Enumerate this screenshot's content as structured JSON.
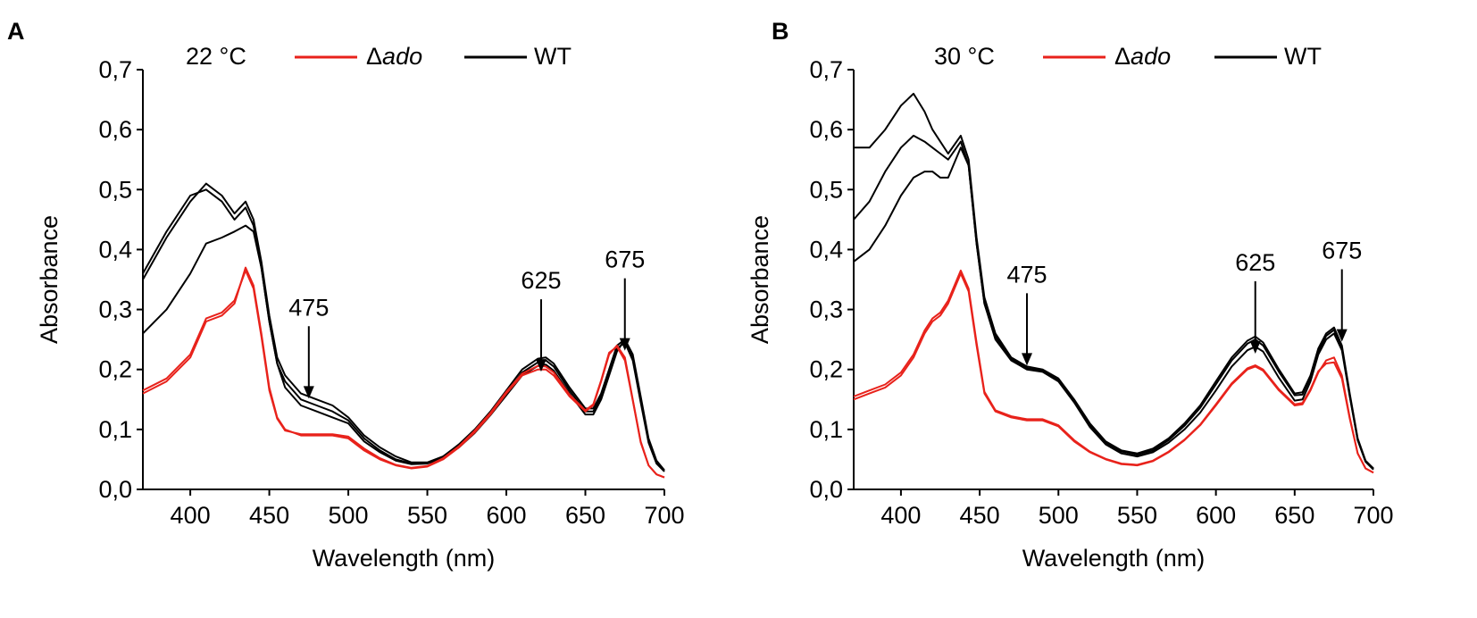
{
  "chart_data": [
    {
      "panel": "A",
      "type": "line",
      "temperature": "22 °C",
      "xlabel": "Wavelength (nm)",
      "ylabel": "Absorbance",
      "xlim": [
        370,
        700
      ],
      "ylim": [
        0,
        0.7
      ],
      "xticks": [
        400,
        450,
        500,
        550,
        600,
        650,
        700
      ],
      "yticks": [
        0,
        0.1,
        0.2,
        0.3,
        0.4,
        0.5,
        0.6,
        0.7
      ],
      "ytick_labels": [
        "0,0",
        "0,1",
        "0,2",
        "0,3",
        "0,4",
        "0,5",
        "0,6",
        "0,7"
      ],
      "legend": [
        {
          "label_prefix": "Δ",
          "label_italic": "ado",
          "color": "#e8221b"
        },
        {
          "label_prefix": "",
          "label_italic": "",
          "label": "WT",
          "color": "#000000"
        }
      ],
      "annotations": [
        {
          "text": "475",
          "x": 475,
          "y_tip": 0.205,
          "y_text": 0.29
        },
        {
          "text": "625",
          "x": 622,
          "y_tip": 0.25,
          "y_text": 0.335
        },
        {
          "text": "675",
          "x": 675,
          "y_tip": 0.285,
          "y_text": 0.37
        }
      ],
      "series": [
        {
          "name": "WT-1",
          "group": "WT",
          "color": "#000000",
          "x": [
            370,
            385,
            400,
            410,
            420,
            428,
            435,
            440,
            445,
            450,
            455,
            460,
            470,
            480,
            490,
            500,
            510,
            520,
            530,
            540,
            550,
            560,
            570,
            580,
            590,
            600,
            610,
            620,
            625,
            630,
            640,
            650,
            655,
            660,
            665,
            670,
            675,
            680,
            685,
            690,
            695,
            700
          ],
          "y": [
            0.35,
            0.42,
            0.48,
            0.51,
            0.49,
            0.46,
            0.48,
            0.45,
            0.38,
            0.29,
            0.22,
            0.19,
            0.16,
            0.15,
            0.14,
            0.12,
            0.09,
            0.07,
            0.055,
            0.045,
            0.045,
            0.055,
            0.075,
            0.1,
            0.13,
            0.165,
            0.2,
            0.218,
            0.22,
            0.21,
            0.17,
            0.135,
            0.135,
            0.16,
            0.2,
            0.24,
            0.25,
            0.22,
            0.15,
            0.08,
            0.045,
            0.03
          ]
        },
        {
          "name": "WT-2",
          "group": "WT",
          "color": "#000000",
          "x": [
            370,
            385,
            400,
            410,
            420,
            428,
            435,
            440,
            445,
            450,
            455,
            460,
            470,
            480,
            490,
            500,
            510,
            520,
            530,
            540,
            550,
            560,
            570,
            580,
            590,
            600,
            610,
            620,
            625,
            630,
            640,
            650,
            655,
            660,
            665,
            670,
            675,
            680,
            685,
            690,
            695,
            700
          ],
          "y": [
            0.36,
            0.43,
            0.49,
            0.5,
            0.48,
            0.45,
            0.47,
            0.44,
            0.37,
            0.28,
            0.21,
            0.18,
            0.15,
            0.14,
            0.13,
            0.115,
            0.085,
            0.065,
            0.05,
            0.043,
            0.044,
            0.053,
            0.072,
            0.097,
            0.127,
            0.16,
            0.195,
            0.212,
            0.215,
            0.205,
            0.165,
            0.13,
            0.13,
            0.155,
            0.195,
            0.235,
            0.245,
            0.215,
            0.145,
            0.078,
            0.043,
            0.03
          ]
        },
        {
          "name": "WT-3",
          "group": "WT",
          "color": "#000000",
          "x": [
            370,
            385,
            400,
            410,
            420,
            428,
            435,
            440,
            445,
            450,
            455,
            460,
            470,
            480,
            490,
            500,
            510,
            520,
            530,
            540,
            550,
            560,
            570,
            580,
            590,
            600,
            610,
            620,
            625,
            630,
            640,
            650,
            655,
            660,
            665,
            670,
            675,
            680,
            685,
            690,
            695,
            700
          ],
          "y": [
            0.26,
            0.3,
            0.36,
            0.41,
            0.42,
            0.43,
            0.44,
            0.43,
            0.37,
            0.28,
            0.21,
            0.17,
            0.14,
            0.13,
            0.12,
            0.11,
            0.08,
            0.062,
            0.048,
            0.042,
            0.043,
            0.052,
            0.07,
            0.094,
            0.124,
            0.157,
            0.19,
            0.206,
            0.208,
            0.198,
            0.16,
            0.125,
            0.125,
            0.15,
            0.19,
            0.23,
            0.25,
            0.225,
            0.155,
            0.085,
            0.048,
            0.032
          ]
        },
        {
          "name": "Δado-1",
          "group": "Δado",
          "color": "#e8221b",
          "x": [
            370,
            385,
            400,
            410,
            420,
            428,
            435,
            440,
            445,
            450,
            455,
            460,
            470,
            480,
            490,
            500,
            510,
            520,
            530,
            540,
            550,
            560,
            570,
            580,
            590,
            600,
            610,
            620,
            625,
            630,
            640,
            650,
            655,
            660,
            665,
            670,
            675,
            680,
            685,
            690,
            695,
            700
          ],
          "y": [
            0.16,
            0.18,
            0.22,
            0.28,
            0.29,
            0.31,
            0.37,
            0.34,
            0.26,
            0.17,
            0.12,
            0.1,
            0.09,
            0.09,
            0.09,
            0.085,
            0.065,
            0.05,
            0.04,
            0.035,
            0.038,
            0.05,
            0.07,
            0.095,
            0.125,
            0.16,
            0.19,
            0.2,
            0.2,
            0.19,
            0.155,
            0.13,
            0.14,
            0.18,
            0.225,
            0.24,
            0.22,
            0.15,
            0.08,
            0.04,
            0.025,
            0.02
          ]
        },
        {
          "name": "Δado-2",
          "group": "Δado",
          "color": "#e8221b",
          "x": [
            370,
            385,
            400,
            410,
            420,
            428,
            435,
            440,
            445,
            450,
            455,
            460,
            470,
            480,
            490,
            500,
            510,
            520,
            530,
            540,
            550,
            560,
            570,
            580,
            590,
            600,
            610,
            620,
            625,
            630,
            640,
            650,
            655,
            660,
            665,
            670,
            675,
            680,
            685,
            690,
            695,
            700
          ],
          "y": [
            0.165,
            0.185,
            0.225,
            0.285,
            0.295,
            0.315,
            0.365,
            0.335,
            0.255,
            0.165,
            0.118,
            0.098,
            0.092,
            0.092,
            0.092,
            0.088,
            0.068,
            0.052,
            0.041,
            0.036,
            0.039,
            0.052,
            0.072,
            0.098,
            0.128,
            0.163,
            0.193,
            0.206,
            0.205,
            0.195,
            0.158,
            0.132,
            0.142,
            0.182,
            0.228,
            0.238,
            0.215,
            0.148,
            0.078,
            0.04,
            0.025,
            0.02
          ]
        }
      ]
    },
    {
      "panel": "B",
      "type": "line",
      "temperature": "30 °C",
      "xlabel": "Wavelength (nm)",
      "ylabel": "Absorbance",
      "xlim": [
        370,
        700
      ],
      "ylim": [
        0,
        0.7
      ],
      "xticks": [
        400,
        450,
        500,
        550,
        600,
        650,
        700
      ],
      "yticks": [
        0,
        0.1,
        0.2,
        0.3,
        0.4,
        0.5,
        0.6,
        0.7
      ],
      "ytick_labels": [
        "0,0",
        "0,1",
        "0,2",
        "0,3",
        "0,4",
        "0,5",
        "0,6",
        "0,7"
      ],
      "legend": [
        {
          "label_prefix": "Δ",
          "label_italic": "ado",
          "color": "#e8221b"
        },
        {
          "label_prefix": "",
          "label_italic": "",
          "label": "WT",
          "color": "#000000"
        }
      ],
      "annotations": [
        {
          "text": "475",
          "x": 480,
          "y_tip": 0.26,
          "y_text": 0.345
        },
        {
          "text": "625",
          "x": 625,
          "y_tip": 0.28,
          "y_text": 0.365
        },
        {
          "text": "675",
          "x": 680,
          "y_tip": 0.3,
          "y_text": 0.385
        }
      ],
      "series": [
        {
          "name": "WT-1",
          "group": "WT",
          "color": "#000000",
          "x": [
            370,
            380,
            390,
            400,
            408,
            415,
            420,
            425,
            430,
            438,
            443,
            448,
            453,
            460,
            470,
            480,
            490,
            500,
            510,
            520,
            530,
            540,
            550,
            560,
            570,
            580,
            590,
            600,
            610,
            620,
            625,
            630,
            640,
            650,
            655,
            660,
            665,
            670,
            675,
            680,
            685,
            690,
            695,
            700
          ],
          "y": [
            0.57,
            0.57,
            0.6,
            0.64,
            0.66,
            0.63,
            0.6,
            0.58,
            0.56,
            0.59,
            0.55,
            0.42,
            0.32,
            0.26,
            0.22,
            0.205,
            0.2,
            0.185,
            0.15,
            0.11,
            0.08,
            0.065,
            0.06,
            0.068,
            0.085,
            0.11,
            0.14,
            0.18,
            0.22,
            0.248,
            0.255,
            0.245,
            0.2,
            0.16,
            0.162,
            0.19,
            0.235,
            0.26,
            0.27,
            0.24,
            0.16,
            0.085,
            0.048,
            0.035
          ]
        },
        {
          "name": "WT-2",
          "group": "WT",
          "color": "#000000",
          "x": [
            370,
            380,
            390,
            400,
            408,
            415,
            420,
            425,
            430,
            438,
            443,
            448,
            453,
            460,
            470,
            480,
            490,
            500,
            510,
            520,
            530,
            540,
            550,
            560,
            570,
            580,
            590,
            600,
            610,
            620,
            625,
            630,
            640,
            650,
            655,
            660,
            665,
            670,
            675,
            680,
            685,
            690,
            695,
            700
          ],
          "y": [
            0.45,
            0.48,
            0.53,
            0.57,
            0.59,
            0.58,
            0.57,
            0.56,
            0.55,
            0.58,
            0.54,
            0.41,
            0.31,
            0.255,
            0.218,
            0.202,
            0.198,
            0.182,
            0.147,
            0.107,
            0.078,
            0.063,
            0.058,
            0.065,
            0.082,
            0.106,
            0.136,
            0.175,
            0.215,
            0.243,
            0.25,
            0.24,
            0.196,
            0.157,
            0.158,
            0.186,
            0.23,
            0.256,
            0.266,
            0.236,
            0.157,
            0.083,
            0.047,
            0.034
          ]
        },
        {
          "name": "WT-3",
          "group": "WT",
          "color": "#000000",
          "x": [
            370,
            380,
            390,
            400,
            408,
            415,
            420,
            425,
            430,
            438,
            443,
            448,
            453,
            460,
            470,
            480,
            490,
            500,
            510,
            520,
            530,
            540,
            550,
            560,
            570,
            580,
            590,
            600,
            610,
            620,
            625,
            630,
            640,
            650,
            655,
            660,
            665,
            670,
            675,
            680,
            685,
            690,
            695,
            700
          ],
          "y": [
            0.38,
            0.4,
            0.44,
            0.49,
            0.52,
            0.53,
            0.53,
            0.52,
            0.52,
            0.57,
            0.54,
            0.41,
            0.31,
            0.25,
            0.215,
            0.2,
            0.196,
            0.18,
            0.145,
            0.104,
            0.075,
            0.06,
            0.055,
            0.062,
            0.078,
            0.1,
            0.128,
            0.165,
            0.205,
            0.232,
            0.238,
            0.23,
            0.186,
            0.148,
            0.15,
            0.18,
            0.225,
            0.25,
            0.26,
            0.232,
            0.155,
            0.082,
            0.046,
            0.033
          ]
        },
        {
          "name": "Δado-1",
          "group": "Δado",
          "color": "#e8221b",
          "x": [
            370,
            380,
            390,
            400,
            408,
            415,
            420,
            425,
            430,
            438,
            443,
            448,
            453,
            460,
            470,
            480,
            490,
            500,
            510,
            520,
            530,
            540,
            550,
            560,
            570,
            580,
            590,
            600,
            610,
            620,
            625,
            630,
            640,
            650,
            655,
            660,
            665,
            670,
            675,
            680,
            685,
            690,
            695,
            700
          ],
          "y": [
            0.15,
            0.16,
            0.17,
            0.19,
            0.22,
            0.26,
            0.28,
            0.29,
            0.31,
            0.36,
            0.33,
            0.24,
            0.16,
            0.13,
            0.12,
            0.115,
            0.115,
            0.105,
            0.08,
            0.062,
            0.05,
            0.042,
            0.04,
            0.047,
            0.062,
            0.082,
            0.107,
            0.14,
            0.175,
            0.2,
            0.205,
            0.198,
            0.165,
            0.14,
            0.142,
            0.165,
            0.195,
            0.215,
            0.22,
            0.19,
            0.12,
            0.06,
            0.035,
            0.028
          ]
        },
        {
          "name": "Δado-2",
          "group": "Δado",
          "color": "#e8221b",
          "x": [
            370,
            380,
            390,
            400,
            408,
            415,
            420,
            425,
            430,
            438,
            443,
            448,
            453,
            460,
            470,
            480,
            490,
            500,
            510,
            520,
            530,
            540,
            550,
            560,
            570,
            580,
            590,
            600,
            610,
            620,
            625,
            630,
            640,
            650,
            655,
            660,
            665,
            670,
            675,
            680,
            685,
            690,
            695,
            700
          ],
          "y": [
            0.155,
            0.165,
            0.175,
            0.195,
            0.225,
            0.265,
            0.285,
            0.295,
            0.315,
            0.365,
            0.335,
            0.245,
            0.163,
            0.132,
            0.122,
            0.117,
            0.117,
            0.107,
            0.082,
            0.063,
            0.051,
            0.043,
            0.041,
            0.048,
            0.063,
            0.083,
            0.108,
            0.142,
            0.177,
            0.202,
            0.207,
            0.2,
            0.167,
            0.142,
            0.144,
            0.167,
            0.197,
            0.21,
            0.212,
            0.185,
            0.118,
            0.06,
            0.035,
            0.028
          ]
        }
      ]
    }
  ]
}
